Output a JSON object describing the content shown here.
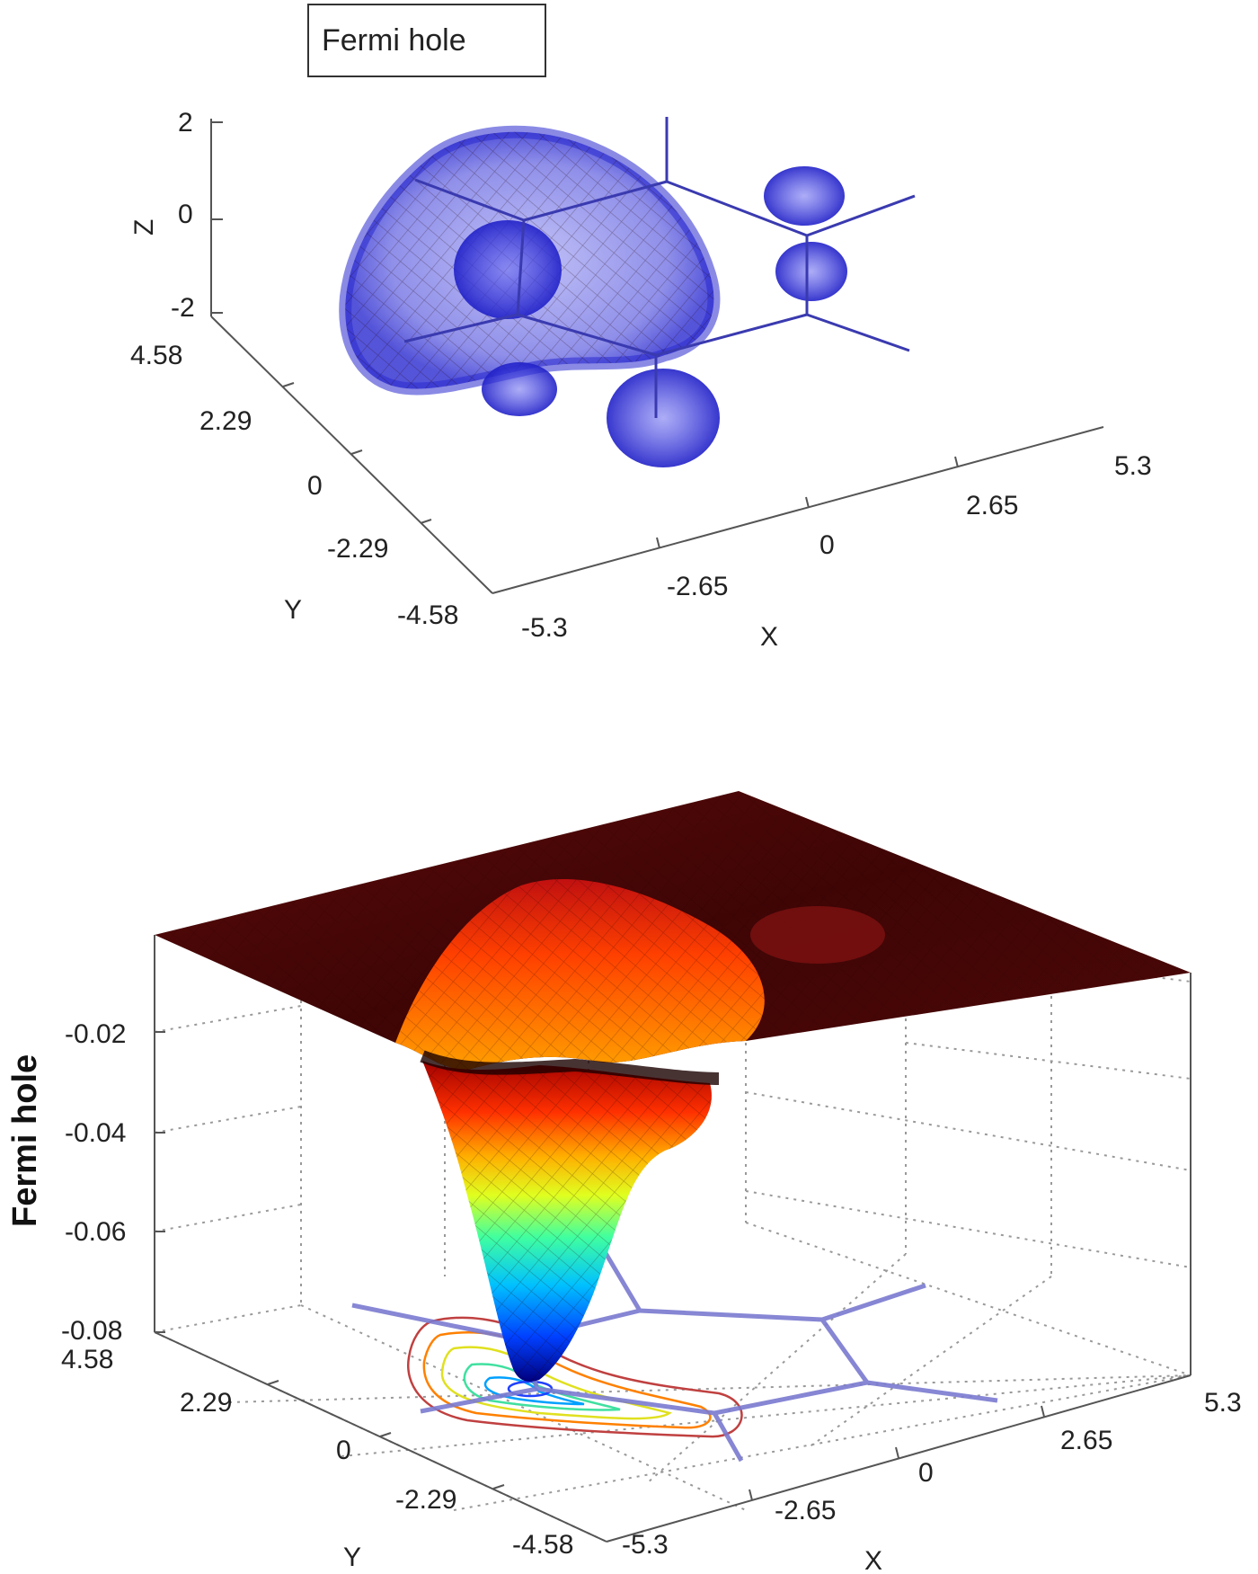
{
  "chart_data": [
    {
      "type": "scatter",
      "legend": [
        "Fermi hole"
      ],
      "legend_position": "top-left",
      "xlabel": "X",
      "ylabel": "Y",
      "zlabel": "Z",
      "x_ticks": [
        "-5.3",
        "-2.65",
        "0",
        "2.65",
        "5.3"
      ],
      "y_ticks": [
        "-4.58",
        "-2.29",
        "0",
        "2.29",
        "4.58"
      ],
      "z_ticks": [
        "-2",
        "0",
        "2"
      ],
      "xlim": [
        -5.3,
        5.3
      ],
      "ylim": [
        -4.58,
        4.58
      ],
      "zlim": [
        -2,
        2
      ],
      "grid": false,
      "marker_color": "#3b3bdc",
      "line_color": "#3a3ab0"
    },
    {
      "type": "surface",
      "xlabel": "X",
      "ylabel": "Y",
      "zlabel": "Fermi hole",
      "x_ticks": [
        "-5.3",
        "-2.65",
        "0",
        "2.65",
        "5.3"
      ],
      "y_ticks": [
        "-4.58",
        "-2.29",
        "0",
        "2.29",
        "4.58"
      ],
      "z_ticks": [
        "-0.02",
        "-0.04",
        "-0.06",
        "-0.08"
      ],
      "xlim": [
        -5.3,
        5.3
      ],
      "ylim": [
        -4.58,
        4.58
      ],
      "zlim": [
        -0.08,
        0
      ],
      "minimum": -0.08,
      "grid": true,
      "colormap": "jet",
      "contour_on_floor": true,
      "molecule_line_color": "#7a7ad0"
    }
  ]
}
